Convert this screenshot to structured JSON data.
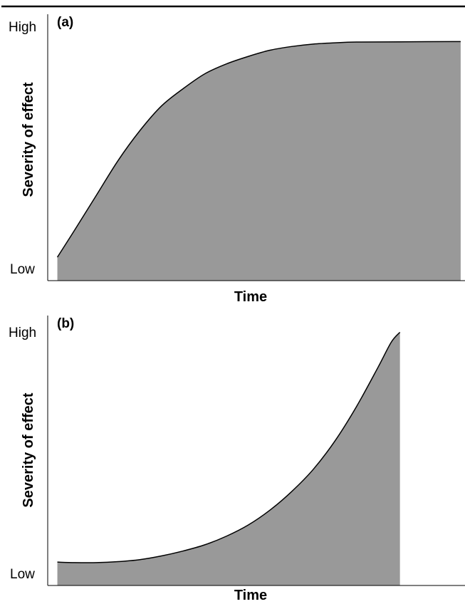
{
  "chart_data": [
    {
      "type": "area",
      "panel_label": "(a)",
      "xlabel": "Time",
      "ylabel": "Severity of effect",
      "y_tick_labels": {
        "low": "Low",
        "high": "High"
      },
      "xlim": [
        0,
        1
      ],
      "ylim": [
        0,
        1
      ],
      "fill_color": "#999999",
      "line_color": "#000000",
      "points": [
        [
          0.06,
          0.06
        ],
        [
          0.1,
          0.17
        ],
        [
          0.15,
          0.31
        ],
        [
          0.2,
          0.45
        ],
        [
          0.25,
          0.57
        ],
        [
          0.3,
          0.67
        ],
        [
          0.35,
          0.74
        ],
        [
          0.4,
          0.8
        ],
        [
          0.45,
          0.84
        ],
        [
          0.5,
          0.87
        ],
        [
          0.55,
          0.895
        ],
        [
          0.6,
          0.91
        ],
        [
          0.65,
          0.92
        ],
        [
          0.7,
          0.925
        ],
        [
          0.75,
          0.928
        ],
        [
          0.85,
          0.929
        ],
        [
          0.99,
          0.93
        ]
      ]
    },
    {
      "type": "area",
      "panel_label": "(b)",
      "xlabel": "Time",
      "ylabel": "Severity of effect",
      "y_tick_labels": {
        "low": "Low",
        "high": "High"
      },
      "xlim": [
        0,
        1
      ],
      "ylim": [
        0,
        1
      ],
      "fill_color": "#999999",
      "line_color": "#000000",
      "points": [
        [
          0.06,
          0.06
        ],
        [
          0.1,
          0.058
        ],
        [
          0.15,
          0.058
        ],
        [
          0.2,
          0.062
        ],
        [
          0.25,
          0.07
        ],
        [
          0.3,
          0.085
        ],
        [
          0.35,
          0.105
        ],
        [
          0.4,
          0.13
        ],
        [
          0.45,
          0.165
        ],
        [
          0.5,
          0.21
        ],
        [
          0.55,
          0.27
        ],
        [
          0.6,
          0.345
        ],
        [
          0.65,
          0.435
        ],
        [
          0.7,
          0.55
        ],
        [
          0.75,
          0.69
        ],
        [
          0.8,
          0.85
        ],
        [
          0.83,
          0.95
        ],
        [
          0.85,
          0.99
        ]
      ]
    }
  ]
}
